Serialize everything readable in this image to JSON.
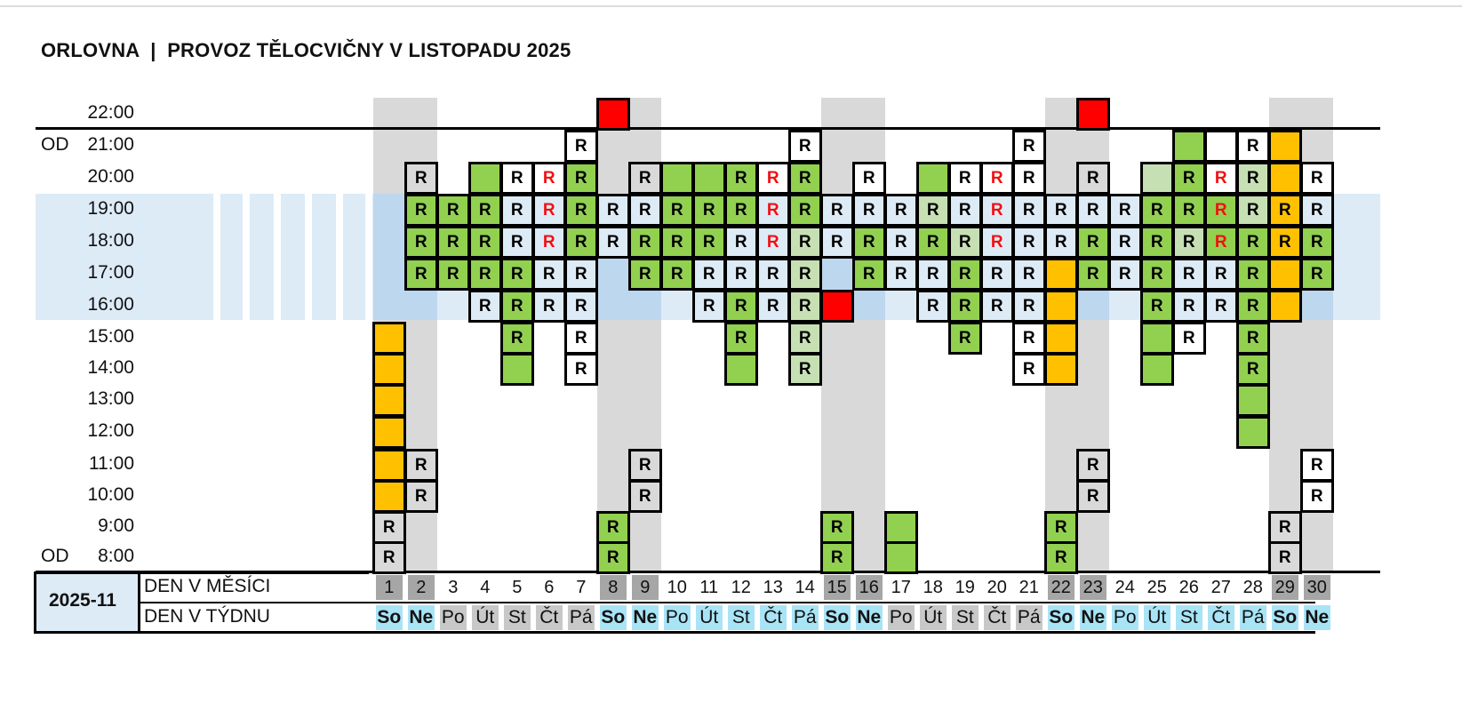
{
  "title": "ORLOVNA  |  PROVOZ TĚLOCVIČNY V LISTOPADU 2025",
  "month_code": "2025-11",
  "row_label_day": "DEN V MĚSÍCI",
  "row_label_dow": "DEN V TÝDNU",
  "from_label": "OD",
  "hours": [
    "22:00",
    "21:00",
    "20:00",
    "19:00",
    "18:00",
    "17:00",
    "16:00",
    "15:00",
    "14:00",
    "13:00",
    "12:00",
    "11:00",
    "10:00",
    "9:00",
    "8:00"
  ],
  "days": [
    {
      "num": "1",
      "dow": "So",
      "weekend": true
    },
    {
      "num": "2",
      "dow": "Ne",
      "weekend": true
    },
    {
      "num": "3",
      "dow": "Po",
      "weekend": false
    },
    {
      "num": "4",
      "dow": "Út",
      "weekend": false
    },
    {
      "num": "5",
      "dow": "St",
      "weekend": false
    },
    {
      "num": "6",
      "dow": "Čt",
      "weekend": false
    },
    {
      "num": "7",
      "dow": "Pá",
      "weekend": false
    },
    {
      "num": "8",
      "dow": "So",
      "weekend": true
    },
    {
      "num": "9",
      "dow": "Ne",
      "weekend": true
    },
    {
      "num": "10",
      "dow": "Po",
      "weekend": false
    },
    {
      "num": "11",
      "dow": "Út",
      "weekend": false
    },
    {
      "num": "12",
      "dow": "St",
      "weekend": false
    },
    {
      "num": "13",
      "dow": "Čt",
      "weekend": false
    },
    {
      "num": "14",
      "dow": "Pá",
      "weekend": false
    },
    {
      "num": "15",
      "dow": "So",
      "weekend": true
    },
    {
      "num": "16",
      "dow": "Ne",
      "weekend": true
    },
    {
      "num": "17",
      "dow": "Po",
      "weekend": false
    },
    {
      "num": "18",
      "dow": "Út",
      "weekend": false
    },
    {
      "num": "19",
      "dow": "St",
      "weekend": false
    },
    {
      "num": "20",
      "dow": "Čt",
      "weekend": false
    },
    {
      "num": "21",
      "dow": "Pá",
      "weekend": false
    },
    {
      "num": "22",
      "dow": "So",
      "weekend": true
    },
    {
      "num": "23",
      "dow": "Ne",
      "weekend": true
    },
    {
      "num": "24",
      "dow": "Po",
      "weekend": false
    },
    {
      "num": "25",
      "dow": "Út",
      "weekend": false
    },
    {
      "num": "26",
      "dow": "St",
      "weekend": false
    },
    {
      "num": "27",
      "dow": "Čt",
      "weekend": false
    },
    {
      "num": "28",
      "dow": "Pá",
      "weekend": false
    },
    {
      "num": "29",
      "dow": "So",
      "weekend": true
    },
    {
      "num": "30",
      "dow": "Ne",
      "weekend": true
    }
  ],
  "colors": {
    "green": "#92d050",
    "light_green": "#c6e0b4",
    "orange": "#ffc000",
    "red": "#ff0000",
    "light_blue": "#ddebf7",
    "blue_band": "#bdd7ee",
    "gray_column": "#d9d9d9",
    "weekday_day_bg": "#d9d9d9",
    "weekday_dow_bg": "#c8c8c8",
    "weekend_day_bg": "#a6a6a6",
    "dow_highlight": "#a8e4f6"
  },
  "schedule": {
    "1": {
      "16:00": "bb",
      "15:00": "o",
      "14:00": "o",
      "13:00": "o",
      "12:00": "o",
      "11:00": "o",
      "10:00": "o",
      "9:00": "gR",
      "8:00": "gR"
    },
    "2": {
      "20:00": "gR",
      "19:00": "G",
      "18:00": "G",
      "17:00": "G",
      "16:00": "bb",
      "11:00": "gR",
      "10:00": "gR"
    },
    "3": {
      "19:00": "G",
      "18:00": "G",
      "17:00": "G"
    },
    "4": {
      "20:00": "g",
      "19:00": "G",
      "18:00": "G",
      "17:00": "G",
      "16:00": "bR"
    },
    "5": {
      "20:00": "wR",
      "19:00": "bR",
      "18:00": "bR",
      "17:00": "G",
      "16:00": "G",
      "15:00": "G",
      "14:00": "g"
    },
    "6": {
      "20:00": "wRr",
      "19:00": "bRr",
      "18:00": "bRr",
      "17:00": "bR",
      "16:00": "bR"
    },
    "7": {
      "21:00": "wR",
      "20:00": "G",
      "19:00": "G",
      "18:00": "G",
      "17:00": "bR",
      "16:00": "bR",
      "15:00": "wR",
      "14:00": "wR"
    },
    "8": {
      "22:00": "r",
      "19:00": "bR",
      "18:00": "bR",
      "17:00": "bb",
      "16:00": "bb",
      "9:00": "G",
      "8:00": "G"
    },
    "9": {
      "20:00": "gR",
      "19:00": "bR",
      "18:00": "G",
      "17:00": "G",
      "16:00": "bb",
      "11:00": "gR",
      "10:00": "gR"
    },
    "10": {
      "20:00": "g",
      "19:00": "G",
      "18:00": "G",
      "17:00": "G"
    },
    "11": {
      "20:00": "g",
      "19:00": "G",
      "18:00": "G",
      "17:00": "bR",
      "16:00": "bR"
    },
    "12": {
      "20:00": "G",
      "19:00": "G",
      "18:00": "bR",
      "17:00": "bR",
      "16:00": "G",
      "15:00": "G",
      "14:00": "g"
    },
    "13": {
      "20:00": "wRr",
      "19:00": "bRr",
      "18:00": "bRr",
      "17:00": "bR",
      "16:00": "bR"
    },
    "14": {
      "21:00": "wR",
      "20:00": "G",
      "19:00": "G",
      "18:00": "lR",
      "17:00": "lR",
      "16:00": "lR",
      "15:00": "lR",
      "14:00": "lR"
    },
    "15": {
      "19:00": "bR",
      "18:00": "bR",
      "17:00": "bb",
      "16:00": "r",
      "9:00": "G",
      "8:00": "G"
    },
    "16": {
      "20:00": "wR",
      "19:00": "bR",
      "18:00": "G",
      "17:00": "G",
      "16:00": "bb"
    },
    "17": {
      "19:00": "bR",
      "18:00": "bR",
      "17:00": "bR",
      "9:00": "g",
      "8:00": "g"
    },
    "18": {
      "20:00": "g",
      "19:00": "lR",
      "18:00": "G",
      "17:00": "bR",
      "16:00": "bR"
    },
    "19": {
      "20:00": "wR",
      "19:00": "bR",
      "18:00": "lR",
      "17:00": "G",
      "16:00": "G",
      "15:00": "G"
    },
    "20": {
      "20:00": "wRr",
      "19:00": "bRr",
      "18:00": "bRr",
      "17:00": "bR",
      "16:00": "bR"
    },
    "21": {
      "21:00": "wR",
      "20:00": "wR",
      "19:00": "bR",
      "18:00": "bR",
      "17:00": "bR",
      "16:00": "bR",
      "15:00": "wR",
      "14:00": "wR"
    },
    "22": {
      "19:00": "bR",
      "18:00": "bR",
      "17:00": "o",
      "16:00": "o",
      "15:00": "o",
      "14:00": "o",
      "9:00": "G",
      "8:00": "G"
    },
    "23": {
      "22:00": "r",
      "20:00": "gR",
      "19:00": "bR",
      "18:00": "G",
      "17:00": "G",
      "16:00": "bb",
      "11:00": "gR",
      "10:00": "gR"
    },
    "24": {
      "19:00": "bR",
      "18:00": "bR",
      "17:00": "bR"
    },
    "25": {
      "20:00": "l",
      "19:00": "G",
      "18:00": "G",
      "17:00": "G",
      "16:00": "G",
      "15:00": "g",
      "14:00": "g"
    },
    "26": {
      "21:00": "g",
      "20:00": "G",
      "19:00": "G",
      "18:00": "lR",
      "17:00": "bR",
      "16:00": "bR",
      "15:00": "wR"
    },
    "27": {
      "21:00": "w",
      "20:00": "wRr",
      "19:00": "GRr",
      "18:00": "GRr",
      "17:00": "bR",
      "16:00": "bR"
    },
    "28": {
      "21:00": "wR",
      "20:00": "lR",
      "19:00": "lR",
      "18:00": "G",
      "17:00": "G",
      "16:00": "G",
      "15:00": "G",
      "14:00": "G",
      "13:00": "g",
      "12:00": "g"
    },
    "29": {
      "21:00": "o",
      "20:00": "o",
      "19:00": "oR",
      "18:00": "oR",
      "17:00": "o",
      "16:00": "o",
      "9:00": "gR",
      "8:00": "gR"
    },
    "30": {
      "20:00": "wR",
      "19:00": "bR",
      "18:00": "G",
      "17:00": "G",
      "16:00": "bb",
      "11:00": "wR",
      "10:00": "wR"
    }
  },
  "legend_codes": {
    "G": "green cell with R",
    "g": "green cell",
    "l": "light green cell",
    "lR": "light green cell with R",
    "o": "orange cell",
    "oR": "orange cell with R",
    "r": "red cell",
    "bR": "light blue cell with R",
    "bRr": "light blue cell with red R",
    "GRr": "green cell with red R",
    "wR": "white cell with R",
    "wRr": "white cell with red R",
    "w": "white cell",
    "gR": "gray cell with R",
    "bb": "blue band cell"
  }
}
